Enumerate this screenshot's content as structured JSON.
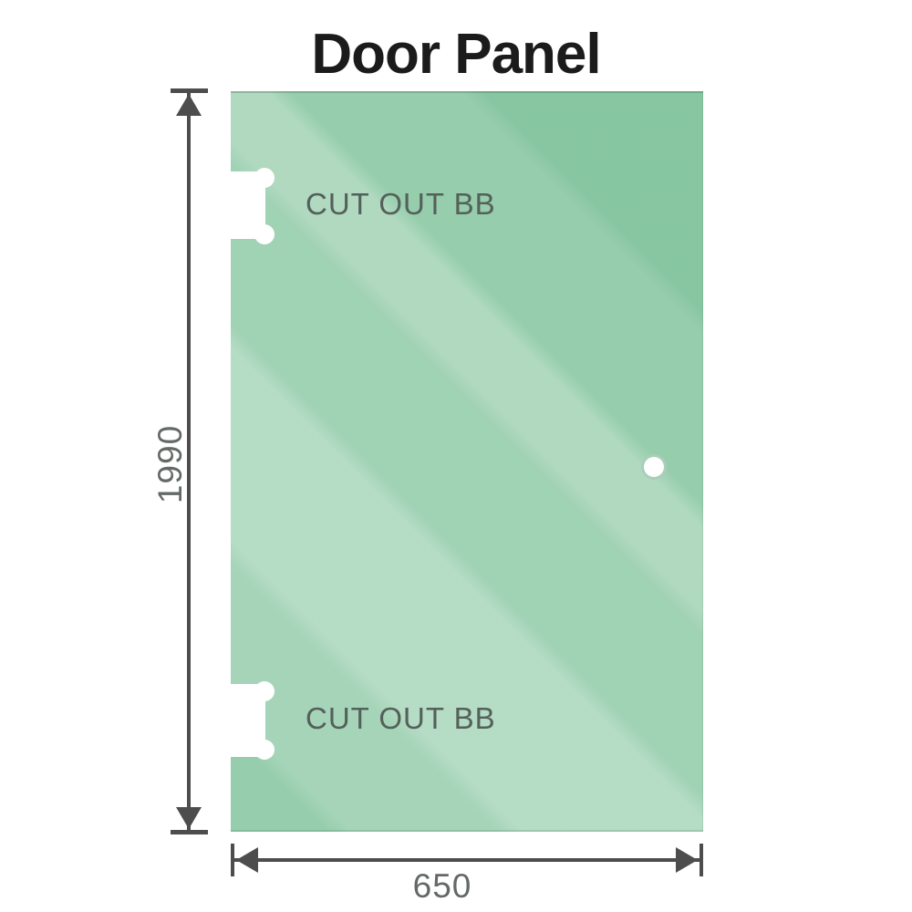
{
  "title": "Door Panel",
  "diagram": {
    "height_dimension": {
      "value": "1990"
    },
    "width_dimension": {
      "value": "650"
    },
    "cutouts": [
      {
        "label": "CUT OUT BB"
      },
      {
        "label": "CUT OUT BB"
      }
    ],
    "colors": {
      "background": "#ffffff",
      "glass_base": "#7fc29a",
      "glass_light_band": "#b7ddc3",
      "glass_dark_corner": "#87c69f",
      "dimension_line": "#4d4d4d",
      "dimension_text": "#636965",
      "cutout_text": "#54605a",
      "title_text": "#1b1b1b",
      "hole_ring": "#7cb492"
    }
  }
}
